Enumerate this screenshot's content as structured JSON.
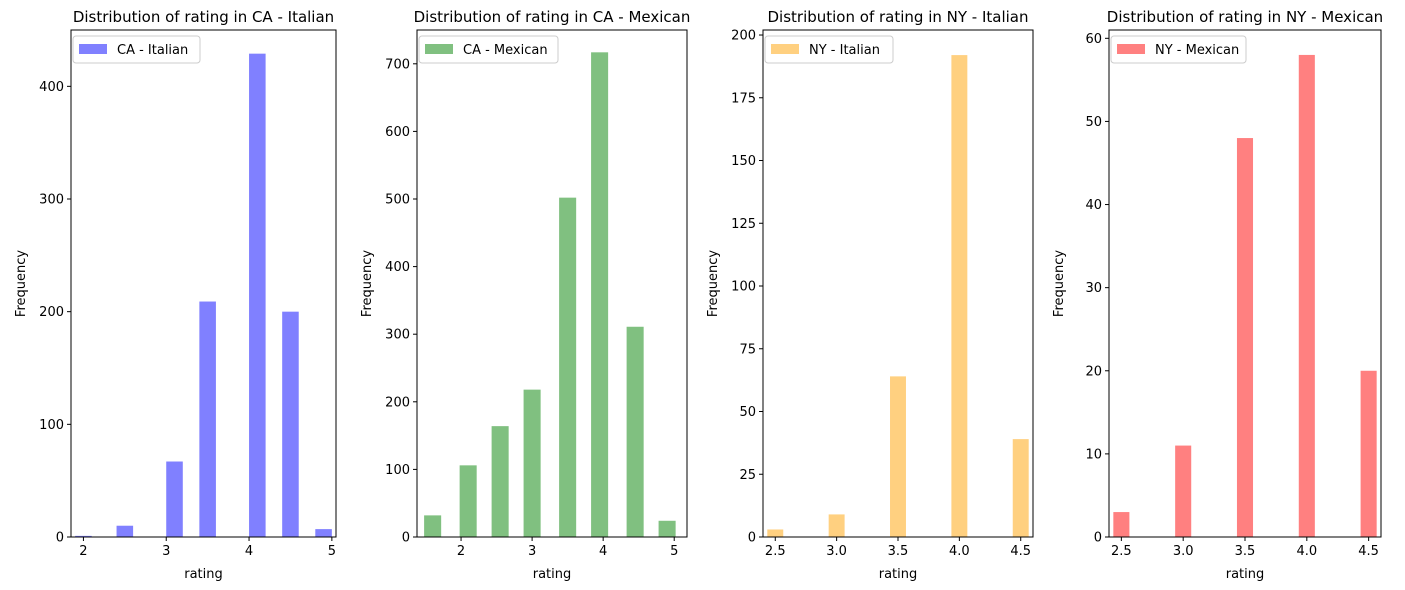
{
  "chart_data": [
    {
      "type": "bar",
      "title": "Distribution of rating in CA - Italian",
      "xlabel": "rating",
      "ylabel": "Frequency",
      "legend": {
        "label": "CA - Italian",
        "position": "top-left"
      },
      "color": "#8080ff",
      "xlim": [
        1.85,
        5.05
      ],
      "ylim": [
        0,
        450
      ],
      "xticks": [
        2,
        3,
        4,
        5
      ],
      "xtick_labels": [
        "2",
        "3",
        "4",
        "5"
      ],
      "yticks": [
        0,
        100,
        200,
        300,
        400
      ],
      "ytick_labels": [
        "0",
        "100",
        "200",
        "300",
        "400"
      ],
      "bars": [
        {
          "x": 2.0,
          "value": 1
        },
        {
          "x": 2.5,
          "value": 10
        },
        {
          "x": 3.1,
          "value": 67
        },
        {
          "x": 3.5,
          "value": 209
        },
        {
          "x": 4.1,
          "value": 429
        },
        {
          "x": 4.5,
          "value": 200
        },
        {
          "x": 4.9,
          "value": 7
        }
      ],
      "bar_width": 0.2
    },
    {
      "type": "bar",
      "title": "Distribution of rating in CA - Mexican",
      "xlabel": "rating",
      "ylabel": "Frequency",
      "legend": {
        "label": "CA - Mexican",
        "position": "top-left"
      },
      "color": "#80c080",
      "xlim": [
        1.38,
        5.18
      ],
      "ylim": [
        0,
        750
      ],
      "xticks": [
        2,
        3,
        4,
        5
      ],
      "xtick_labels": [
        "2",
        "3",
        "4",
        "5"
      ],
      "yticks": [
        0,
        100,
        200,
        300,
        400,
        500,
        600,
        700
      ],
      "ytick_labels": [
        "0",
        "100",
        "200",
        "300",
        "400",
        "500",
        "600",
        "700"
      ],
      "bars": [
        {
          "x": 1.6,
          "value": 32
        },
        {
          "x": 2.1,
          "value": 106
        },
        {
          "x": 2.55,
          "value": 164
        },
        {
          "x": 3.0,
          "value": 218
        },
        {
          "x": 3.5,
          "value": 502
        },
        {
          "x": 3.95,
          "value": 717
        },
        {
          "x": 4.45,
          "value": 311
        },
        {
          "x": 4.9,
          "value": 24
        }
      ],
      "bar_width": 0.24
    },
    {
      "type": "bar",
      "title": "Distribution of rating in NY - Italian",
      "xlabel": "rating",
      "ylabel": "Frequency",
      "legend": {
        "label": "NY - Italian",
        "position": "top-left"
      },
      "color": "#ffd080",
      "xlim": [
        2.4,
        4.6
      ],
      "ylim": [
        0,
        202
      ],
      "xticks": [
        2.5,
        3.0,
        3.5,
        4.0,
        4.5
      ],
      "xtick_labels": [
        "2.5",
        "3.0",
        "3.5",
        "4.0",
        "4.5"
      ],
      "yticks": [
        0,
        25,
        50,
        75,
        100,
        125,
        150,
        175,
        200
      ],
      "ytick_labels": [
        "0",
        "25",
        "50",
        "75",
        "100",
        "125",
        "150",
        "175",
        "200"
      ],
      "bars": [
        {
          "x": 2.5,
          "value": 3
        },
        {
          "x": 3.0,
          "value": 9
        },
        {
          "x": 3.5,
          "value": 64
        },
        {
          "x": 4.0,
          "value": 192
        },
        {
          "x": 4.5,
          "value": 39
        }
      ],
      "bar_width": 0.13
    },
    {
      "type": "bar",
      "title": "Distribution of rating in NY - Mexican",
      "xlabel": "rating",
      "ylabel": "Frequency",
      "legend": {
        "label": "NY - Mexican",
        "position": "top-left"
      },
      "color": "#ff8080",
      "xlim": [
        2.4,
        4.6
      ],
      "ylim": [
        0,
        61
      ],
      "xticks": [
        2.5,
        3.0,
        3.5,
        4.0,
        4.5
      ],
      "xtick_labels": [
        "2.5",
        "3.0",
        "3.5",
        "4.0",
        "4.5"
      ],
      "yticks": [
        0,
        10,
        20,
        30,
        40,
        50,
        60
      ],
      "ytick_labels": [
        "0",
        "10",
        "20",
        "30",
        "40",
        "50",
        "60"
      ],
      "bars": [
        {
          "x": 2.5,
          "value": 3
        },
        {
          "x": 3.0,
          "value": 11
        },
        {
          "x": 3.5,
          "value": 48
        },
        {
          "x": 4.0,
          "value": 58
        },
        {
          "x": 4.5,
          "value": 20
        }
      ],
      "bar_width": 0.13
    }
  ]
}
